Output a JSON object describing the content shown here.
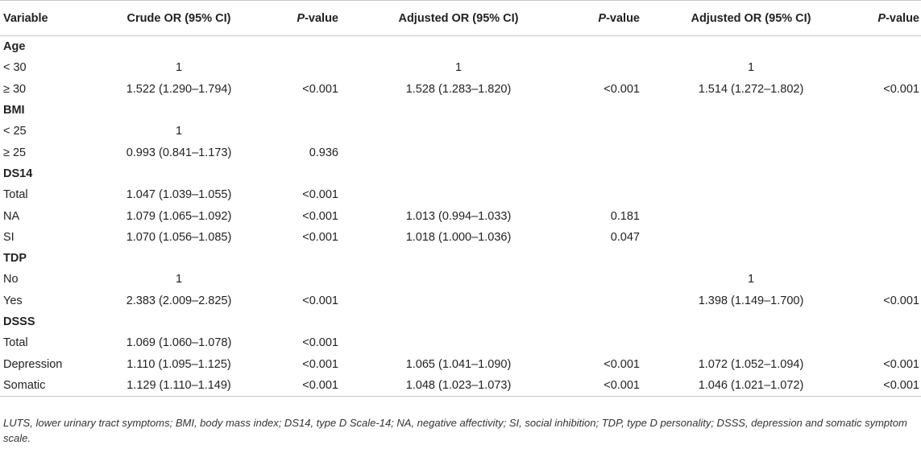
{
  "header": {
    "variable": "Variable",
    "crude_or": "Crude OR (95% CI)",
    "p_italic": "P",
    "p_rest": "-value",
    "adjusted_or_1": "Adjusted OR (95% CI)",
    "adjusted_or_2": "Adjusted OR (95% CI)"
  },
  "rows": [
    {
      "label": "Age",
      "section": true,
      "c1": "",
      "c2": "",
      "c3": "",
      "c4": "",
      "c5": "",
      "c6": ""
    },
    {
      "label": "< 30",
      "section": false,
      "c1": "1",
      "c2": "",
      "c3": "1",
      "c4": "",
      "c5": "1",
      "c6": ""
    },
    {
      "label": "≥ 30",
      "section": false,
      "c1": "1.522 (1.290–1.794)",
      "c2": "<0.001",
      "c3": "1.528 (1.283–1.820)",
      "c4": "<0.001",
      "c5": "1.514 (1.272–1.802)",
      "c6": "<0.001"
    },
    {
      "label": "BMI",
      "section": true,
      "c1": "",
      "c2": "",
      "c3": "",
      "c4": "",
      "c5": "",
      "c6": ""
    },
    {
      "label": "< 25",
      "section": false,
      "c1": "1",
      "c2": "",
      "c3": "",
      "c4": "",
      "c5": "",
      "c6": ""
    },
    {
      "label": "≥ 25",
      "section": false,
      "c1": "0.993 (0.841–1.173)",
      "c2": "0.936",
      "c3": "",
      "c4": "",
      "c5": "",
      "c6": ""
    },
    {
      "label": "DS14",
      "section": true,
      "c1": "",
      "c2": "",
      "c3": "",
      "c4": "",
      "c5": "",
      "c6": ""
    },
    {
      "label": "Total",
      "section": false,
      "c1": "1.047 (1.039–1.055)",
      "c2": "<0.001",
      "c3": "",
      "c4": "",
      "c5": "",
      "c6": ""
    },
    {
      "label": "NA",
      "section": false,
      "c1": "1.079 (1.065–1.092)",
      "c2": "<0.001",
      "c3": "1.013 (0.994–1.033)",
      "c4": "0.181",
      "c5": "",
      "c6": ""
    },
    {
      "label": "SI",
      "section": false,
      "c1": "1.070 (1.056–1.085)",
      "c2": "<0.001",
      "c3": "1.018 (1.000–1.036)",
      "c4": "0.047",
      "c5": "",
      "c6": ""
    },
    {
      "label": "TDP",
      "section": true,
      "c1": "",
      "c2": "",
      "c3": "",
      "c4": "",
      "c5": "",
      "c6": ""
    },
    {
      "label": "No",
      "section": false,
      "c1": "1",
      "c2": "",
      "c3": "",
      "c4": "",
      "c5": "1",
      "c6": ""
    },
    {
      "label": "Yes",
      "section": false,
      "c1": "2.383 (2.009–2.825)",
      "c2": "<0.001",
      "c3": "",
      "c4": "",
      "c5": "1.398 (1.149–1.700)",
      "c6": "<0.001"
    },
    {
      "label": "DSSS",
      "section": true,
      "c1": "",
      "c2": "",
      "c3": "",
      "c4": "",
      "c5": "",
      "c6": ""
    },
    {
      "label": "Total",
      "section": false,
      "c1": "1.069 (1.060–1.078)",
      "c2": "<0.001",
      "c3": "",
      "c4": "",
      "c5": "",
      "c6": ""
    },
    {
      "label": "Depression",
      "section": false,
      "c1": "1.110 (1.095–1.125)",
      "c2": "<0.001",
      "c3": "1.065 (1.041–1.090)",
      "c4": "<0.001",
      "c5": "1.072 (1.052–1.094)",
      "c6": "<0.001"
    },
    {
      "label": "Somatic",
      "section": false,
      "c1": "1.129 (1.110–1.149)",
      "c2": "<0.001",
      "c3": "1.048 (1.023–1.073)",
      "c4": "<0.001",
      "c5": "1.046 (1.021–1.072)",
      "c6": "<0.001"
    }
  ],
  "footnote": "LUTS, lower urinary tract symptoms; BMI, body mass index; DS14, type D Scale-14; NA, negative affectivity; SI, social inhibition; TDP, type D personality; DSSS, depression and somatic symptom scale."
}
